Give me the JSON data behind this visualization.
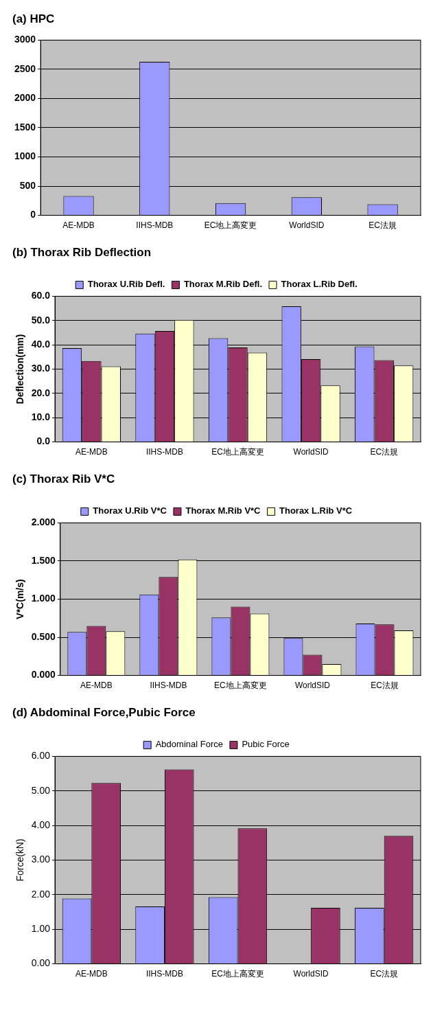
{
  "chart_data": [
    {
      "type": "bar",
      "title": "(a) HPC",
      "categories": [
        "AE-MDB",
        "IIHS-MDB",
        "EC地上高変更",
        "WorldSID",
        "EC法規"
      ],
      "values": [
        330,
        2630,
        210,
        310,
        190
      ],
      "color": "#9999ff",
      "ylim": [
        0,
        3000
      ],
      "yticks": [
        0,
        500,
        1000,
        1500,
        2000,
        2500,
        3000
      ],
      "grid": "y",
      "legend": false
    },
    {
      "type": "bar",
      "title": "(b) Thorax Rib Deflection",
      "ylabel": "Deflection(mm)",
      "categories": [
        "AE-MDB",
        "IIHS-MDB",
        "EC地上高変更",
        "WorldSID",
        "EC法規"
      ],
      "series": [
        {
          "name": "Thorax U.Rib Defl.",
          "color": "#9999ff",
          "values": [
            38.6,
            44.6,
            42.7,
            55.9,
            39.3
          ]
        },
        {
          "name": "Thorax M.Rib Defl.",
          "color": "#993366",
          "values": [
            33.3,
            45.7,
            38.9,
            34.1,
            33.7
          ]
        },
        {
          "name": "Thorax L.Rib Defl.",
          "color": "#ffffcc",
          "values": [
            31.1,
            50.3,
            36.8,
            23.3,
            31.5
          ]
        }
      ],
      "ylim": [
        0,
        60
      ],
      "yticks": [
        {
          "value": 0,
          "label": "0.0"
        },
        {
          "value": 10,
          "label": "10.0"
        },
        {
          "value": 20,
          "label": "20.0"
        },
        {
          "value": 30,
          "label": "30.0"
        },
        {
          "value": 40,
          "label": "40.0"
        },
        {
          "value": 50,
          "label": "50.0"
        },
        {
          "value": 60,
          "label": "60.0"
        }
      ],
      "grid": "y",
      "legend": "top"
    },
    {
      "type": "bar",
      "title": "(c) Thorax Rib V*C",
      "ylabel": "V*C(m/s)",
      "categories": [
        "AE-MDB",
        "IIHS-MDB",
        "EC地上高変更",
        "WorldSID",
        "EC法規"
      ],
      "series": [
        {
          "name": "Thorax U.Rib V*C",
          "color": "#9999ff",
          "values": [
            0.57,
            1.06,
            0.76,
            0.49,
            0.68
          ]
        },
        {
          "name": "Thorax M.Rib V*C",
          "color": "#993366",
          "values": [
            0.65,
            1.29,
            0.9,
            0.27,
            0.67
          ]
        },
        {
          "name": "Thorax L.Rib V*C",
          "color": "#ffffcc",
          "values": [
            0.58,
            1.52,
            0.81,
            0.15,
            0.59
          ]
        }
      ],
      "ylim": [
        0,
        2
      ],
      "yticks": [
        {
          "value": 0,
          "label": "0.000"
        },
        {
          "value": 0.5,
          "label": "0.500"
        },
        {
          "value": 1,
          "label": "1.000"
        },
        {
          "value": 1.5,
          "label": "1.500"
        },
        {
          "value": 2,
          "label": "2.000"
        }
      ],
      "grid": "y",
      "legend": "top"
    },
    {
      "type": "bar",
      "title": "(d) Abdominal Force,Pubic Force",
      "ylabel": "Force(kN)",
      "categories": [
        "AE-MDB",
        "IIHS-MDB",
        "EC地上高変更",
        "WorldSID",
        "EC法規"
      ],
      "series": [
        {
          "name": "Abdominal Force",
          "color": "#9999ff",
          "values": [
            1.89,
            1.66,
            1.93,
            null,
            1.62
          ]
        },
        {
          "name": "Pubic Force",
          "color": "#993366",
          "values": [
            5.23,
            5.62,
            3.92,
            1.62,
            3.7
          ]
        }
      ],
      "ylim": [
        0,
        6
      ],
      "yticks": [
        {
          "value": 0,
          "label": "0.00"
        },
        {
          "value": 1,
          "label": "1.00"
        },
        {
          "value": 2,
          "label": "2.00"
        },
        {
          "value": 3,
          "label": "3.00"
        },
        {
          "value": 4,
          "label": "4.00"
        },
        {
          "value": 5,
          "label": "5.00"
        },
        {
          "value": 6,
          "label": "6.00"
        }
      ],
      "grid": "y",
      "legend": "top"
    }
  ]
}
